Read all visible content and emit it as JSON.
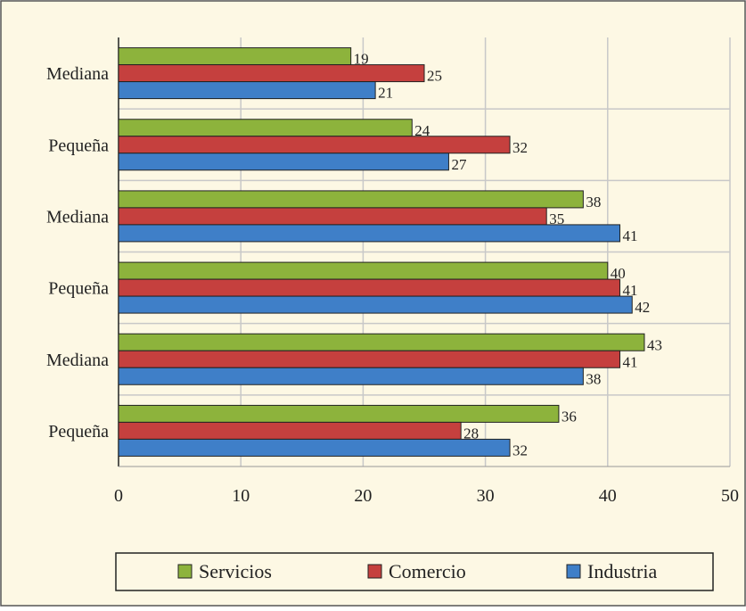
{
  "chart_data": {
    "type": "bar",
    "orientation": "horizontal",
    "categories": [
      "Mediana",
      "Pequeña",
      "Mediana",
      "Pequeña",
      "Mediana",
      "Pequeña"
    ],
    "series": [
      {
        "name": "Servicios",
        "color": "#8db33c",
        "values": [
          19,
          24,
          38,
          40,
          43,
          36
        ]
      },
      {
        "name": "Comercio",
        "color": "#c5403e",
        "values": [
          25,
          32,
          35,
          41,
          41,
          28
        ]
      },
      {
        "name": "Industria",
        "color": "#3f7fc8",
        "values": [
          21,
          27,
          41,
          42,
          38,
          32
        ]
      }
    ],
    "xlim": [
      0,
      50
    ],
    "xticks": [
      0,
      10,
      20,
      30,
      40,
      50
    ],
    "grid": true,
    "legend": "bottom"
  }
}
